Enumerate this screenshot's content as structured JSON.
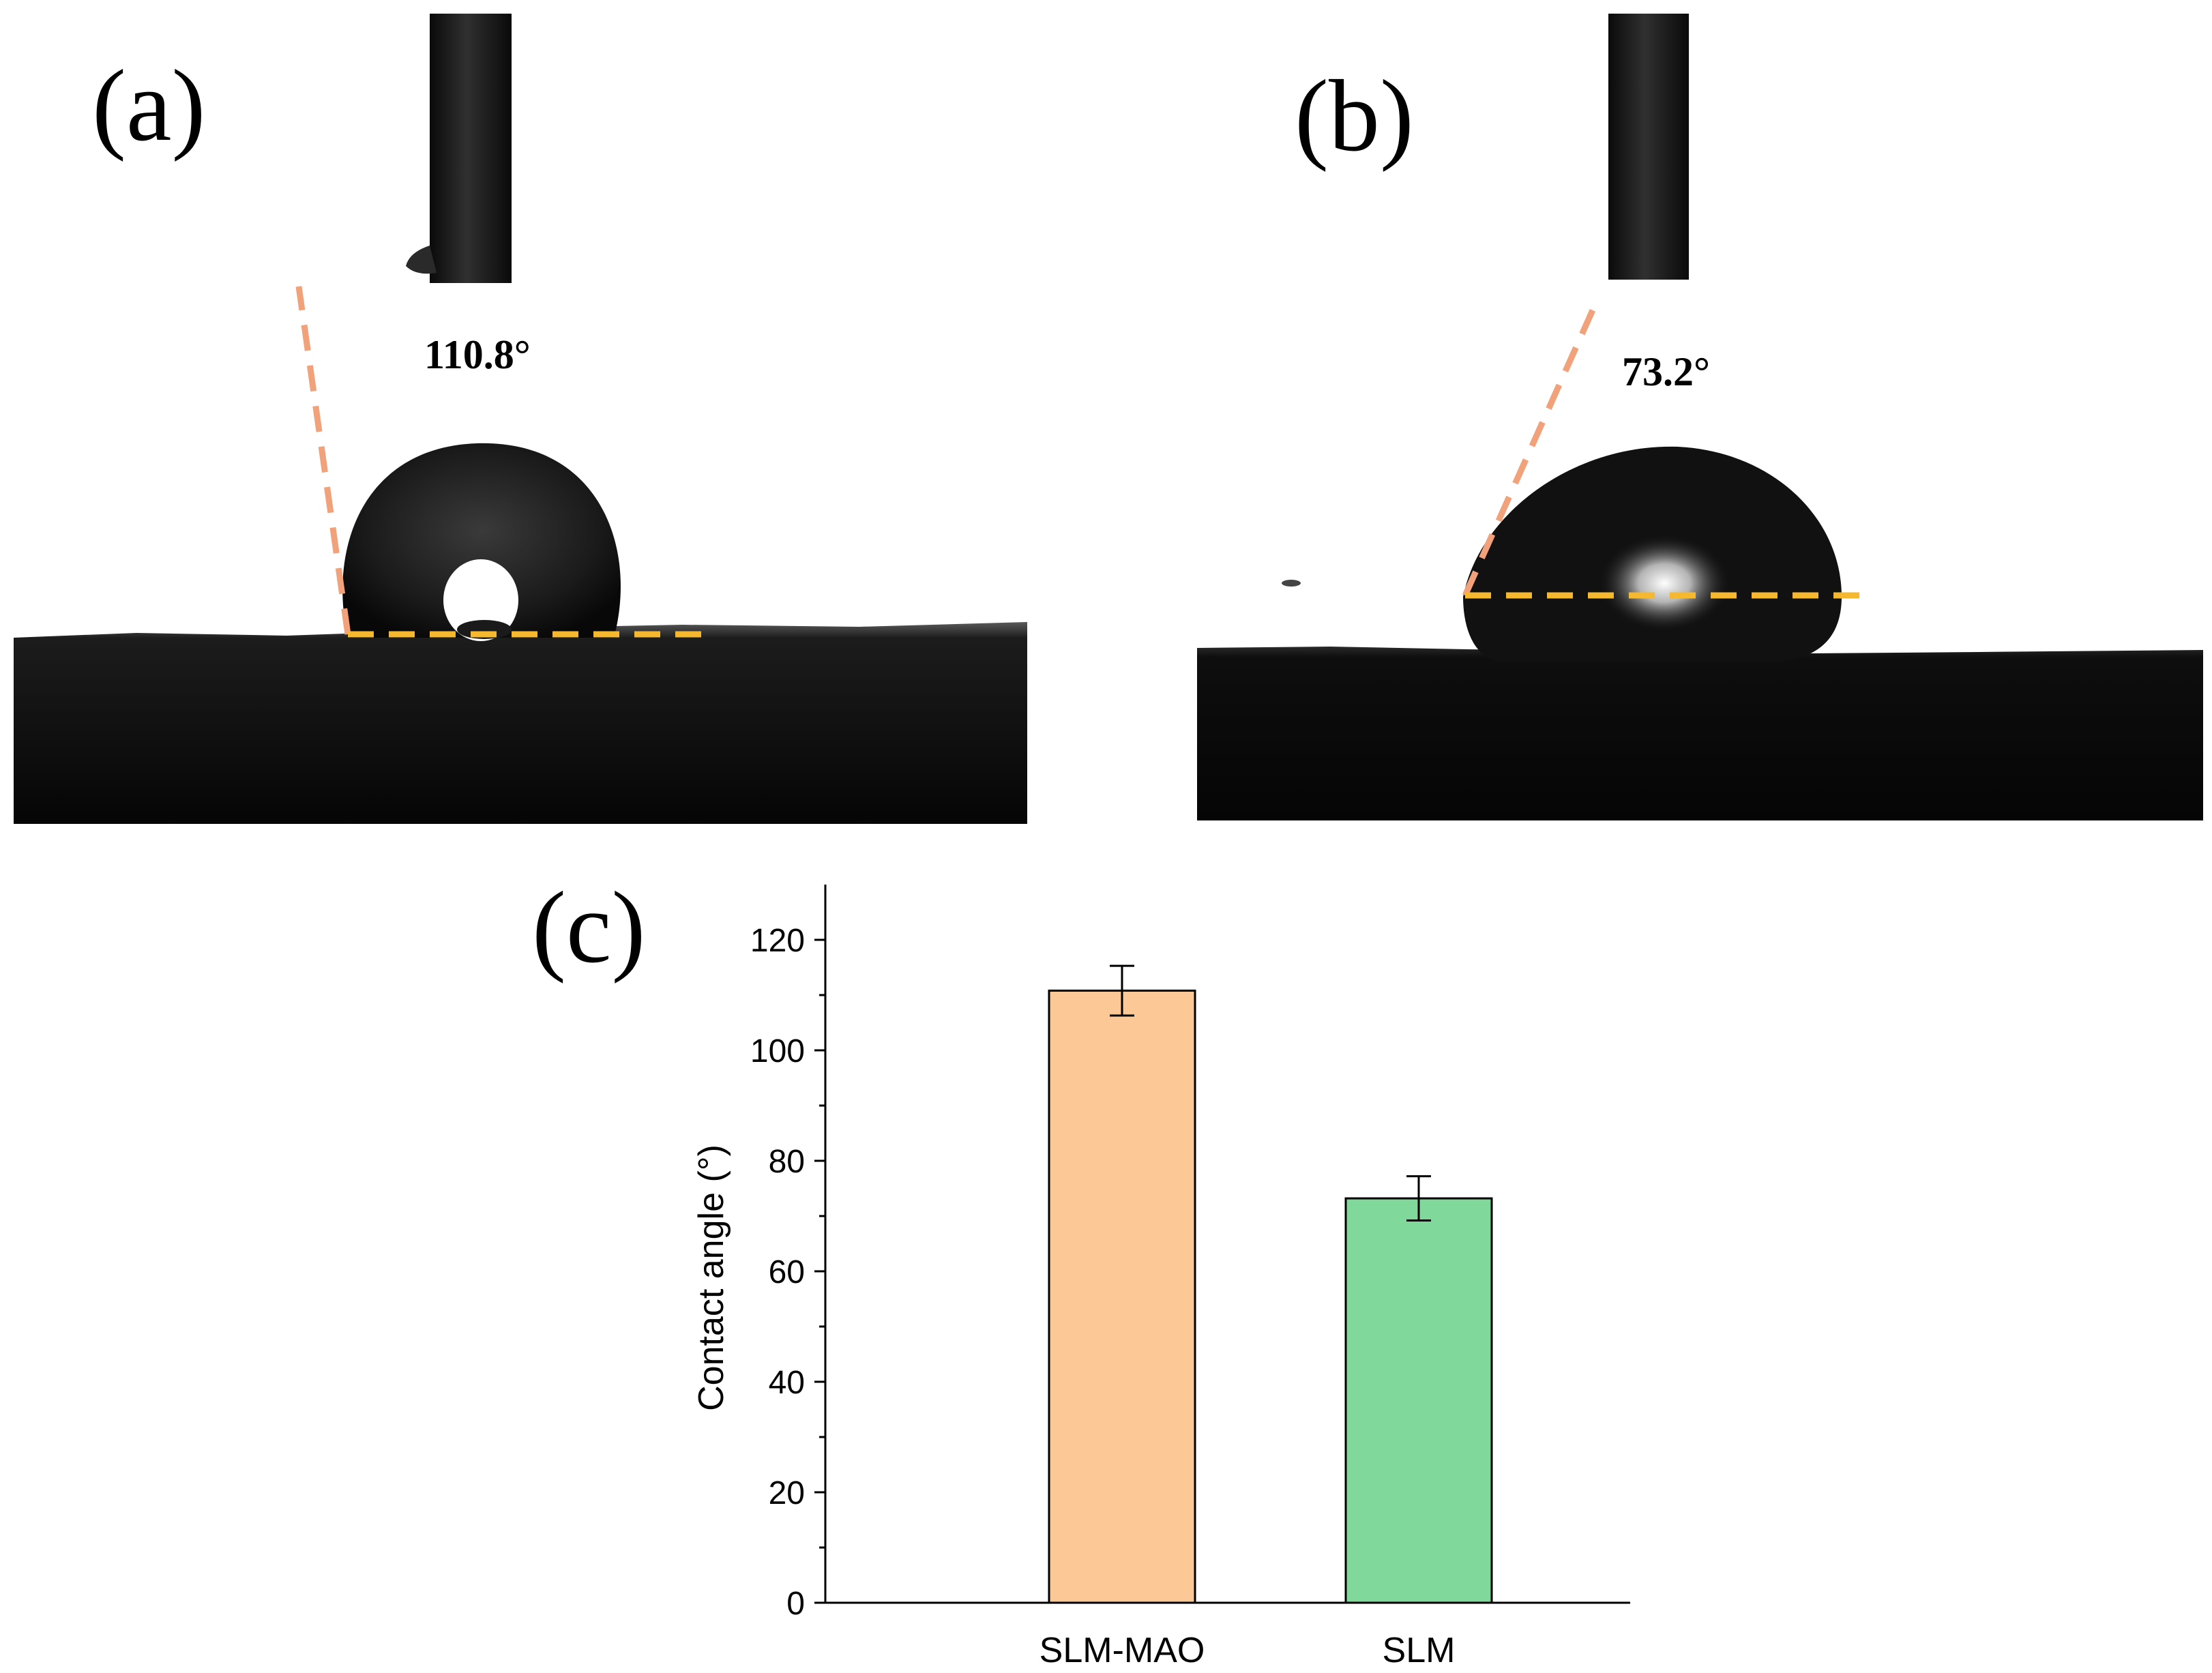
{
  "panels": {
    "a": {
      "letter": "(a)",
      "angle_label": "110.8°"
    },
    "b": {
      "letter": "(b)",
      "angle_label": "73.2°"
    },
    "c": {
      "letter": "(c)"
    }
  },
  "colors": {
    "tangent_line": "#f2a27a",
    "baseline": "#f5b82e",
    "bar_slm_mao": "#fbc896",
    "bar_slm": "#80d99b"
  },
  "chart_data": {
    "type": "bar",
    "categories": [
      "SLM-MAO",
      "SLM"
    ],
    "values": [
      110.8,
      73.2
    ],
    "errors": [
      4.5,
      4.0
    ],
    "ylabel": "Contact angle (°)",
    "ylim": [
      0,
      130
    ],
    "yticks": [
      0,
      20,
      40,
      60,
      80,
      100,
      120
    ],
    "grid": false
  }
}
